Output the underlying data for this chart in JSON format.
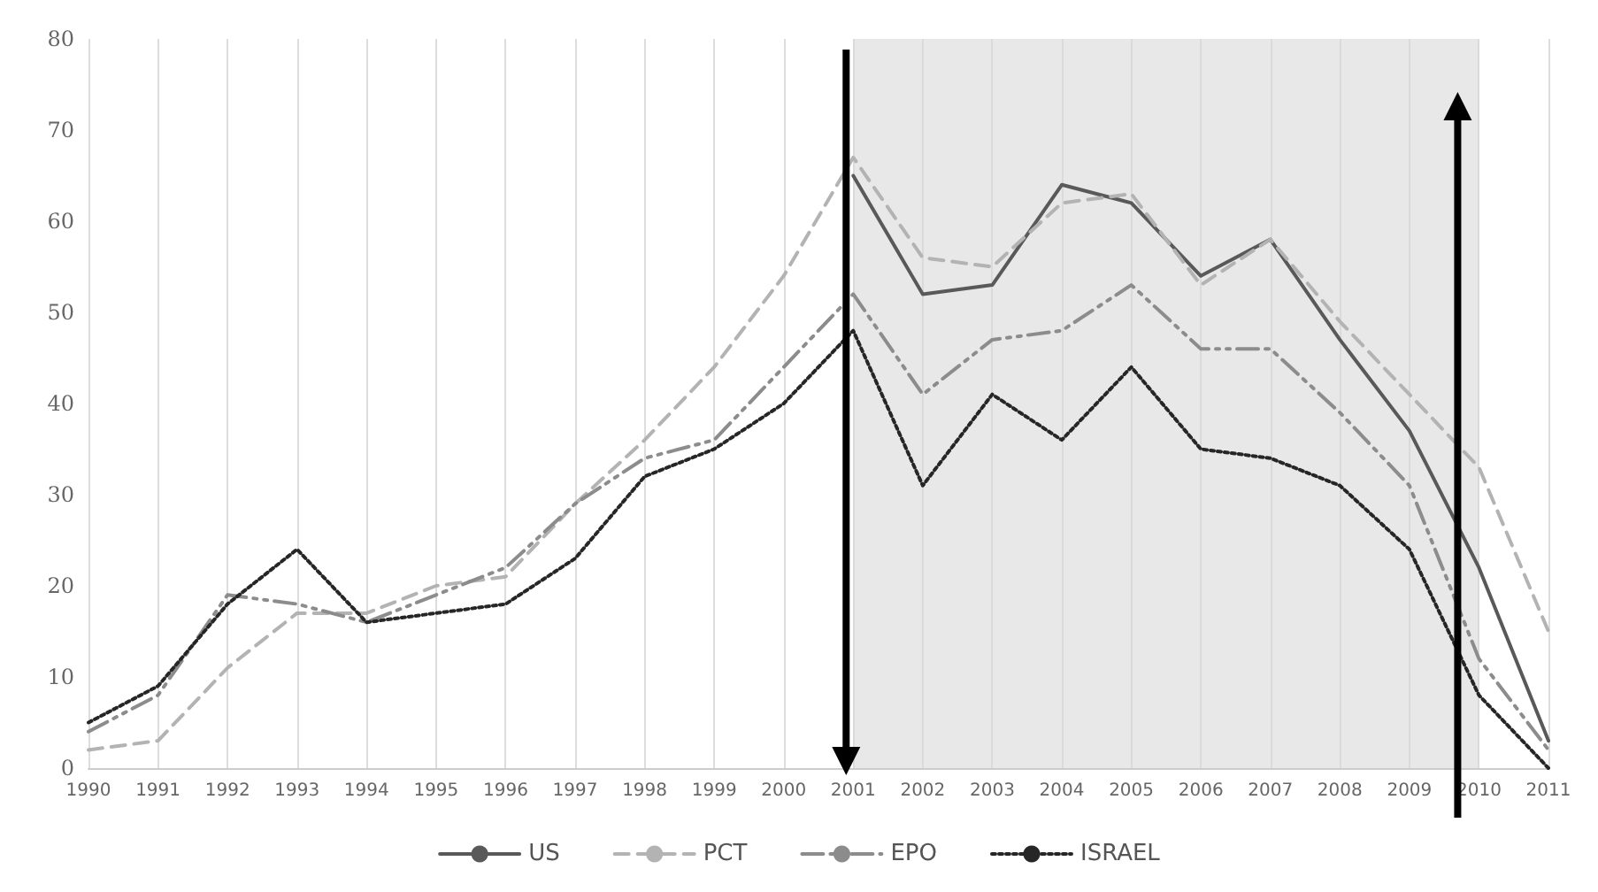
{
  "chart_data": {
    "type": "line",
    "categories": [
      "1990",
      "1991",
      "1992",
      "1993",
      "1994",
      "1995",
      "1996",
      "1997",
      "1998",
      "1999",
      "2000",
      "2001",
      "2002",
      "2003",
      "2004",
      "2005",
      "2006",
      "2007",
      "2008",
      "2009",
      "2010",
      "2011"
    ],
    "series": [
      {
        "name": "US",
        "color": "#595959",
        "line_style": "solid",
        "values": [
          null,
          null,
          null,
          null,
          null,
          null,
          null,
          null,
          null,
          null,
          null,
          65,
          52,
          53,
          64,
          62,
          54,
          58,
          47,
          37,
          22,
          3
        ]
      },
      {
        "name": "PCT",
        "color": "#b3b3b3",
        "line_style": "dashed",
        "values": [
          2,
          3,
          11,
          17,
          17,
          20,
          21,
          29,
          36,
          44,
          54,
          67,
          56,
          55,
          62,
          63,
          53,
          58,
          49,
          41,
          33,
          15
        ]
      },
      {
        "name": "EPO",
        "color": "#8c8c8c",
        "line_style": "dashdot",
        "values": [
          4,
          8,
          19,
          18,
          16,
          19,
          22,
          29,
          34,
          36,
          44,
          52,
          41,
          47,
          48,
          53,
          46,
          46,
          39,
          31,
          12,
          2
        ]
      },
      {
        "name": "ISRAEL",
        "color": "#262626",
        "line_style": "dotted",
        "values": [
          5,
          9,
          18,
          24,
          16,
          17,
          18,
          23,
          32,
          35,
          40,
          48,
          31,
          41,
          36,
          44,
          35,
          34,
          31,
          24,
          8,
          0
        ]
      }
    ],
    "ylim": [
      0,
      80
    ],
    "yticks": [
      0,
      10,
      20,
      30,
      40,
      50,
      60,
      70,
      80
    ],
    "bands": [
      {
        "axis": "x",
        "from": "2001",
        "to": "2010",
        "color": "#d9d9d9"
      }
    ],
    "grid": "x",
    "legend": "bottom",
    "marker": "none"
  }
}
